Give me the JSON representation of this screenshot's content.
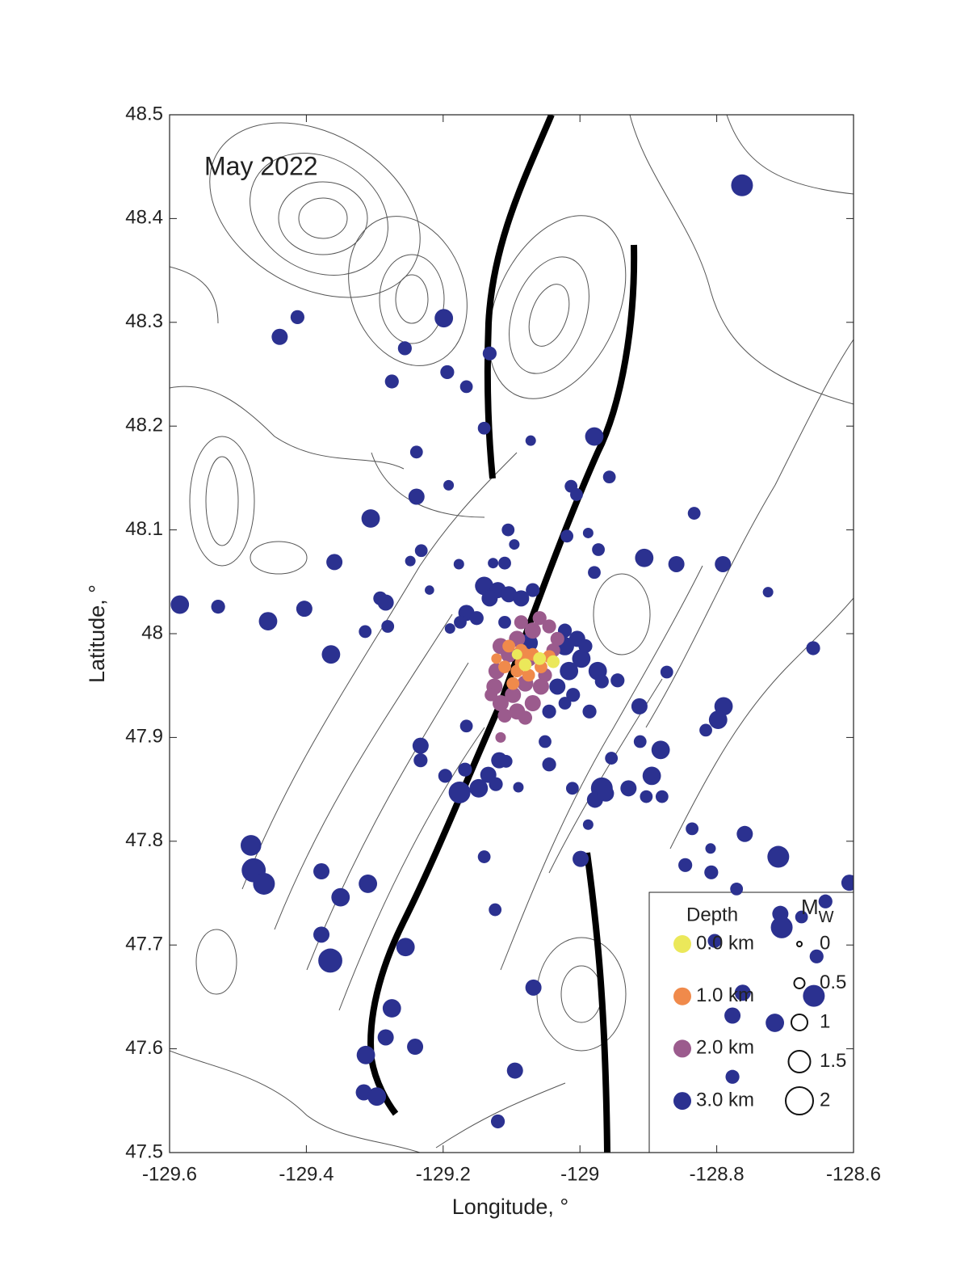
{
  "chart_data": {
    "type": "scatter",
    "annotation": "May 2022",
    "xlabel": "Longitude, °",
    "ylabel": "Latitude, °",
    "xlim": [
      -129.6,
      -128.6
    ],
    "ylim": [
      47.5,
      48.5
    ],
    "xticks": [
      -129.6,
      -129.4,
      -129.2,
      -129,
      -128.8,
      -128.6
    ],
    "yticks": [
      47.5,
      47.6,
      47.7,
      47.8,
      47.9,
      48,
      48.1,
      48.2,
      48.3,
      48.4,
      48.5
    ],
    "legend": "lower right",
    "color_legend_title": "Depth",
    "size_legend": {
      "title_base": "M",
      "title_sub": "W",
      "values": [
        0,
        0.5,
        1,
        1.5,
        2
      ]
    },
    "series": [
      {
        "name": "0.0 km",
        "color": "#ebe85a",
        "x": [
          -129.08,
          -129.059,
          -129.039,
          -129.092
        ],
        "y": [
          47.97,
          47.976,
          47.973,
          47.98
        ],
        "sizes": [
          0.7,
          0.7,
          0.7,
          0.5
        ]
      },
      {
        "name": "1.0 km",
        "color": "#f08a4b",
        "x": [
          -129.104,
          -129.086,
          -129.069,
          -129.11,
          -129.092,
          -129.075,
          -129.057,
          -129.098,
          -129.08,
          -129.045,
          -129.122,
          -129.086
        ],
        "y": [
          47.988,
          47.984,
          47.98,
          47.968,
          47.964,
          47.96,
          47.968,
          47.952,
          47.98,
          47.978,
          47.976,
          47.972
        ],
        "sizes": [
          0.7,
          0.7,
          0.7,
          0.7,
          0.7,
          0.7,
          0.7,
          0.7,
          0.7,
          0.7,
          0.5,
          0.7
        ]
      },
      {
        "name": "2.0 km",
        "color": "#9b5b8d",
        "x": [
          -129.116,
          -129.092,
          -129.069,
          -129.045,
          -129.059,
          -129.104,
          -129.122,
          -129.125,
          -129.116,
          -129.092,
          -129.069,
          -129.057,
          -129.08,
          -129.033,
          -129.039,
          -129.098,
          -129.11,
          -129.08,
          -129.051,
          -129.086,
          -129.116,
          -129.13,
          -129.075
        ],
        "y": [
          47.988,
          47.995,
          48.003,
          48.007,
          48.015,
          47.98,
          47.964,
          47.949,
          47.933,
          47.925,
          47.933,
          47.949,
          47.952,
          47.995,
          47.984,
          47.941,
          47.921,
          47.919,
          47.96,
          48.011,
          47.9,
          47.941,
          47.976
        ],
        "sizes": [
          1.0,
          1.0,
          1.0,
          0.8,
          0.8,
          1.0,
          1.0,
          1.0,
          1.0,
          1.0,
          1.0,
          1.0,
          1.0,
          0.8,
          0.8,
          1.0,
          0.8,
          0.8,
          0.8,
          0.8,
          0.5,
          0.7,
          1.0
        ]
      },
      {
        "name": "3.0 km",
        "color": "#2b3190",
        "x": [
          -128.763,
          -129.413,
          -129.439,
          -129.199,
          -129.256,
          -129.194,
          -129.166,
          -129.275,
          -129.132,
          -129.14,
          -128.979,
          -129.072,
          -129.239,
          -129.192,
          -129.239,
          -128.957,
          -129.013,
          -129.005,
          -129.306,
          -128.833,
          -129.105,
          -129.096,
          -129.232,
          -129.019,
          -128.988,
          -128.973,
          -128.906,
          -128.859,
          -128.791,
          -129.359,
          -129.248,
          -129.177,
          -129.127,
          -129.11,
          -128.979,
          -129.22,
          -129.585,
          -129.529,
          -129.456,
          -129.403,
          -129.292,
          -129.284,
          -129.281,
          -129.314,
          -129.364,
          -128.725,
          -128.659,
          -128.873,
          -128.913,
          -128.79,
          -128.798,
          -128.816,
          -128.882,
          -128.912,
          -128.895,
          -128.954,
          -128.929,
          -128.903,
          -128.968,
          -128.978,
          -128.962,
          -128.88,
          -128.988,
          -128.999,
          -129.011,
          -128.836,
          -128.759,
          -128.809,
          -128.71,
          -128.846,
          -128.808,
          -128.771,
          -128.606,
          -128.641,
          -128.707,
          -128.676,
          -128.705,
          -128.654,
          -128.658,
          -128.762,
          -128.803,
          -128.777,
          -128.715,
          -128.777,
          -129.481,
          -129.477,
          -129.462,
          -129.378,
          -129.35,
          -129.31,
          -129.378,
          -129.365,
          -129.233,
          -129.233,
          -129.197,
          -129.168,
          -129.134,
          -129.123,
          -129.176,
          -129.148,
          -129.09,
          -129.118,
          -129.108,
          -129.045,
          -129.051,
          -129.14,
          -129.124,
          -129.255,
          -129.275,
          -129.284,
          -129.313,
          -129.241,
          -129.316,
          -129.297,
          -129.095,
          -129.12,
          -129.068,
          -129.166,
          -129.19,
          -129.14,
          -129.12,
          -129.104,
          -129.086,
          -129.069,
          -129.132,
          -129.166,
          -129.151,
          -129.175,
          -129.11,
          -129.022,
          -129.004,
          -129.022,
          -128.998,
          -129.016,
          -128.974,
          -129.033,
          -129.01,
          -128.986,
          -129.045,
          -128.945,
          -128.968,
          -129.075,
          -128.992,
          -129.022
        ],
        "y": [
          48.432,
          48.305,
          48.286,
          48.304,
          48.275,
          48.252,
          48.238,
          48.243,
          48.27,
          48.198,
          48.19,
          48.186,
          48.175,
          48.143,
          48.132,
          48.151,
          48.142,
          48.134,
          48.111,
          48.116,
          48.1,
          48.086,
          48.08,
          48.094,
          48.097,
          48.081,
          48.073,
          48.067,
          48.067,
          48.069,
          48.07,
          48.067,
          48.068,
          48.068,
          48.059,
          48.042,
          48.028,
          48.026,
          48.012,
          48.024,
          48.034,
          48.03,
          48.007,
          48.002,
          47.98,
          48.04,
          47.986,
          47.963,
          47.93,
          47.93,
          47.917,
          47.907,
          47.888,
          47.896,
          47.863,
          47.88,
          47.851,
          47.843,
          47.851,
          47.84,
          47.846,
          47.843,
          47.816,
          47.783,
          47.851,
          47.812,
          47.807,
          47.793,
          47.785,
          47.777,
          47.77,
          47.754,
          47.76,
          47.742,
          47.73,
          47.727,
          47.717,
          47.689,
          47.651,
          47.654,
          47.704,
          47.632,
          47.625,
          47.573,
          47.796,
          47.772,
          47.759,
          47.771,
          47.746,
          47.759,
          47.71,
          47.685,
          47.892,
          47.878,
          47.863,
          47.869,
          47.864,
          47.855,
          47.847,
          47.851,
          47.852,
          47.878,
          47.877,
          47.874,
          47.896,
          47.785,
          47.734,
          47.698,
          47.639,
          47.611,
          47.594,
          47.602,
          47.558,
          47.554,
          47.579,
          47.53,
          47.659,
          47.911,
          48.005,
          48.046,
          48.042,
          48.038,
          48.034,
          48.042,
          48.034,
          48.02,
          48.015,
          48.011,
          48.011,
          48.003,
          47.995,
          47.988,
          47.976,
          47.964,
          47.964,
          47.949,
          47.941,
          47.925,
          47.925,
          47.955,
          47.954,
          47.991,
          47.988,
          47.933
        ],
        "sizes": [
          1.5,
          0.8,
          1.0,
          1.2,
          0.8,
          0.8,
          0.7,
          0.8,
          0.8,
          0.7,
          1.2,
          0.5,
          0.7,
          0.5,
          1.0,
          0.7,
          0.7,
          0.7,
          1.2,
          0.7,
          0.7,
          0.5,
          0.7,
          0.7,
          0.5,
          0.7,
          1.2,
          1.0,
          1.0,
          1.0,
          0.5,
          0.5,
          0.5,
          0.7,
          0.7,
          0.4,
          1.2,
          0.8,
          1.2,
          1.0,
          0.8,
          1.0,
          0.7,
          0.7,
          1.2,
          0.5,
          0.8,
          0.7,
          1.0,
          1.2,
          1.2,
          0.7,
          1.2,
          0.7,
          1.2,
          0.7,
          1.0,
          0.7,
          1.5,
          1.0,
          1.0,
          0.7,
          0.5,
          1.0,
          0.7,
          0.7,
          1.0,
          0.5,
          1.5,
          0.8,
          0.8,
          0.7,
          1.0,
          0.8,
          1.0,
          0.7,
          1.5,
          0.8,
          1.5,
          1.0,
          0.8,
          1.0,
          1.2,
          0.8,
          1.4,
          1.7,
          1.5,
          1.0,
          1.2,
          1.2,
          1.0,
          1.7,
          1.0,
          0.8,
          0.8,
          0.8,
          1.0,
          0.8,
          1.5,
          1.2,
          0.5,
          1.0,
          0.7,
          0.8,
          0.7,
          0.7,
          0.7,
          1.2,
          1.2,
          1.0,
          1.2,
          1.0,
          1.0,
          1.2,
          1.0,
          0.8,
          1.0,
          0.7,
          0.5,
          1.2,
          1.0,
          1.0,
          1.0,
          0.8,
          1.0,
          1.0,
          0.8,
          0.7,
          0.7,
          0.8,
          1.0,
          1.2,
          1.2,
          1.2,
          1.2,
          1.0,
          0.8,
          0.8,
          0.8,
          0.8,
          0.8,
          1.2,
          0.8,
          0.7
        ]
      }
    ]
  }
}
